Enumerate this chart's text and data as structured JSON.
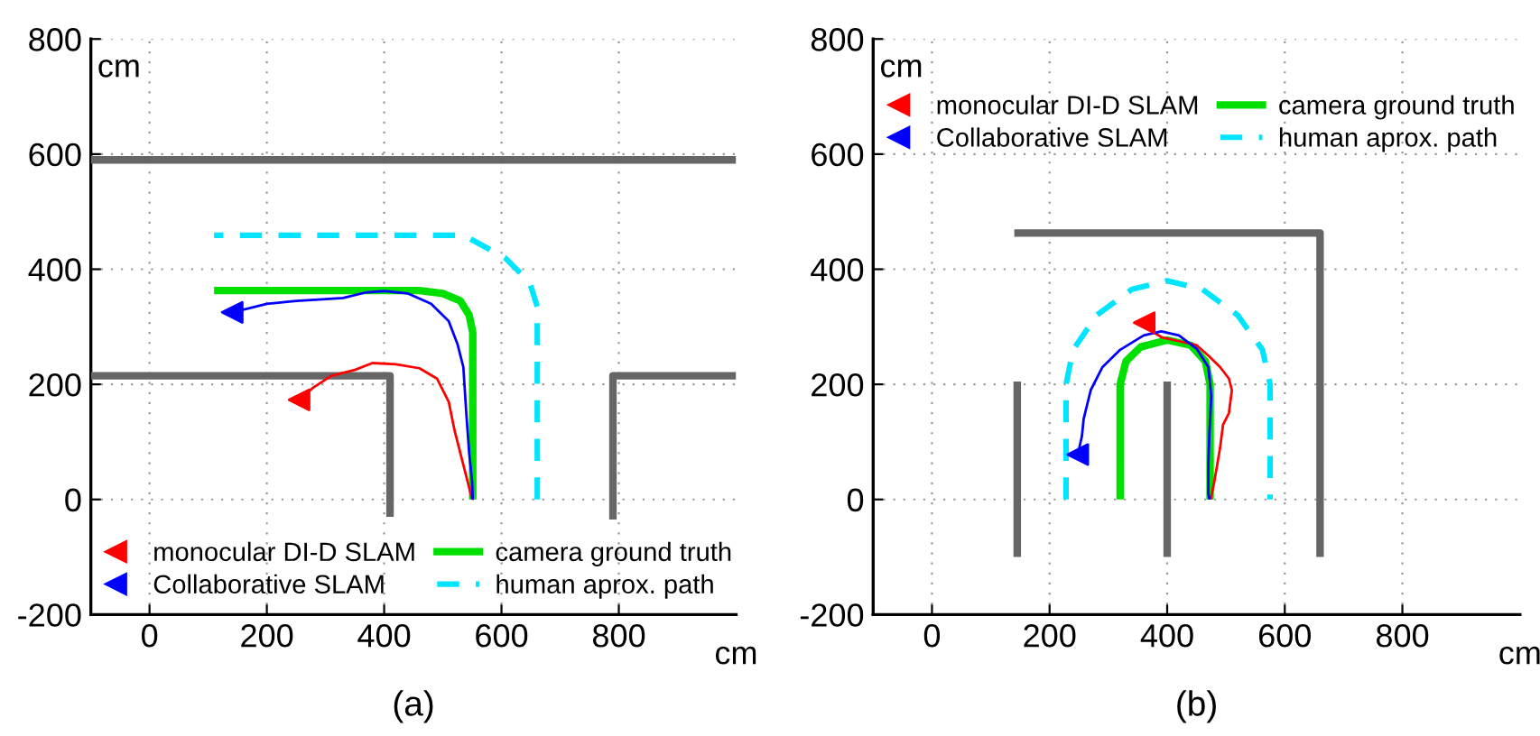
{
  "chart_data": [
    {
      "type": "line",
      "xlabel": "cm",
      "ylabel": "cm",
      "annotations": [
        "(a)"
      ],
      "xlim": [
        -100,
        1000
      ],
      "ylim": [
        -200,
        800
      ],
      "xticks": [
        0,
        200,
        400,
        600,
        800
      ],
      "yticks": [
        -200,
        0,
        200,
        400,
        600,
        800
      ],
      "grid": true,
      "legend": "bottom",
      "series": [
        {
          "color": "#666666",
          "x": [
            -100,
            1000
          ],
          "values": [
            590,
            590
          ]
        },
        {
          "color": "#666666",
          "x": [
            -100,
            410,
            410
          ],
          "values": [
            215,
            215,
            -30
          ]
        },
        {
          "color": "#666666",
          "x": [
            790,
            790,
            1000
          ],
          "values": [
            -35,
            215,
            215
          ]
        },
        {
          "color": "#ff0000",
          "x": [
            550,
            540,
            530,
            520,
            510,
            490,
            460,
            420,
            380,
            350,
            310,
            280,
            255
          ],
          "values": [
            0,
            40,
            80,
            120,
            170,
            210,
            228,
            235,
            237,
            225,
            215,
            195,
            173
          ]
        },
        {
          "color": "#0000ff",
          "x": [
            551,
            550,
            545,
            540,
            535,
            525,
            510,
            480,
            440,
            400,
            370,
            330,
            300,
            250,
            200,
            141
          ],
          "values": [
            0,
            30,
            80,
            150,
            230,
            270,
            310,
            340,
            358,
            362,
            360,
            350,
            348,
            345,
            340,
            325
          ]
        },
        {
          "name": "monocular DI-D SLAM",
          "type": "scatter",
          "marker": "triangle",
          "color": "#ff0000",
          "x": [
            255
          ],
          "values": [
            173
          ]
        },
        {
          "name": "Collaborative SLAM",
          "type": "scatter",
          "marker": "triangle",
          "color": "#0000ff",
          "x": [
            141
          ],
          "values": [
            325
          ]
        },
        {
          "name": "camera ground truth",
          "color": "#00e000",
          "x": [
            551,
            551,
            545,
            530,
            500,
            460,
            110
          ],
          "values": [
            0,
            290,
            320,
            345,
            358,
            363,
            363
          ]
        },
        {
          "name": "human aprox. path",
          "color": "#00e5ff",
          "line_style": "dashed",
          "x": [
            661,
            661,
            648,
            607,
            536,
            110
          ],
          "values": [
            0,
            335,
            377,
            419,
            459,
            459
          ]
        }
      ]
    },
    {
      "type": "line",
      "xlabel": "cm",
      "ylabel": "cm",
      "annotations": [
        "(b)"
      ],
      "xlim": [
        -100,
        1000
      ],
      "ylim": [
        -200,
        800
      ],
      "xticks": [
        0,
        200,
        400,
        600,
        800
      ],
      "yticks": [
        -200,
        0,
        200,
        400,
        600,
        800
      ],
      "grid": true,
      "legend": "top",
      "series": [
        {
          "color": "#666666",
          "x": [
            145,
            145
          ],
          "values": [
            -100,
            205
          ]
        },
        {
          "color": "#666666",
          "x": [
            400,
            400
          ],
          "values": [
            -100,
            205
          ]
        },
        {
          "color": "#666666",
          "x": [
            140,
            660,
            660
          ],
          "values": [
            463,
            463,
            -100
          ]
        },
        {
          "color": "#ff0000",
          "x": [
            474,
            480,
            485,
            490,
            495,
            505,
            510,
            505,
            490,
            470,
            450,
            420,
            390,
            370,
            361
          ],
          "values": [
            0,
            30,
            60,
            90,
            130,
            150,
            190,
            210,
            230,
            250,
            268,
            275,
            282,
            295,
            307
          ]
        },
        {
          "color": "#0000ff",
          "x": [
            472,
            470,
            470,
            472,
            475,
            470,
            450,
            420,
            390,
            360,
            320,
            290,
            270,
            258,
            255,
            248
          ],
          "values": [
            0,
            10,
            60,
            120,
            180,
            230,
            262,
            285,
            292,
            285,
            260,
            230,
            190,
            140,
            110,
            78
          ]
        },
        {
          "name": "monocular DI-D SLAM",
          "type": "scatter",
          "marker": "triangle",
          "color": "#ff0000",
          "x": [
            361
          ],
          "values": [
            307
          ]
        },
        {
          "name": "Collaborative SLAM",
          "type": "scatter",
          "marker": "triangle",
          "color": "#0000ff",
          "x": [
            248
          ],
          "values": [
            78
          ]
        },
        {
          "name": "camera ground truth",
          "color": "#00e000",
          "x": [
            320,
            320,
            330,
            355,
            400,
            440,
            465,
            473,
            473
          ],
          "values": [
            0,
            200,
            240,
            265,
            277,
            268,
            240,
            200,
            0
          ]
        },
        {
          "name": "human aprox. path",
          "color": "#00e5ff",
          "line_style": "dashed",
          "x": [
            228,
            228,
            240,
            280,
            340,
            400,
            460,
            520,
            562,
            575,
            575
          ],
          "values": [
            0,
            200,
            260,
            320,
            365,
            380,
            365,
            320,
            260,
            200,
            0
          ]
        }
      ]
    }
  ]
}
